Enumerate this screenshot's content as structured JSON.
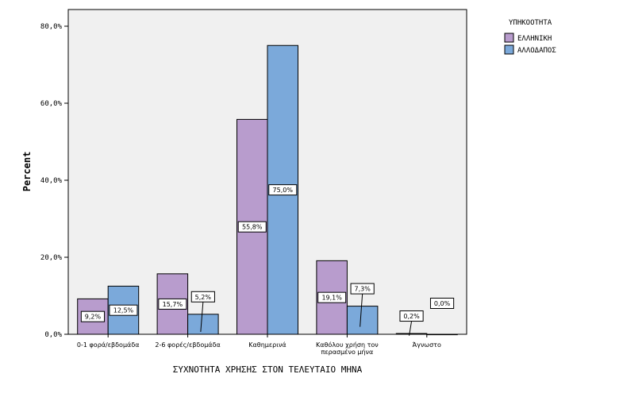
{
  "chart_data": {
    "type": "bar",
    "title": "",
    "xlabel": "ΣΥΧΝΟΤΗΤΑ ΧΡΗΣΗΣ ΣΤΟΝ ΤΕΛΕΥΤΑΙΟ ΜΗΝΑ",
    "ylabel": "Percent",
    "ylim": [
      0,
      80
    ],
    "yticks": [
      0,
      20,
      40,
      60,
      80
    ],
    "ytick_labels": [
      "0,0%",
      "20,0%",
      "40,0%",
      "60,0%",
      "80,0%"
    ],
    "grid": false,
    "legend_position": "top-right",
    "legend_title": "ΥΠΗΚΟΟΤΗΤΑ",
    "categories": [
      [
        "0-1 φορά/εβδομάδα"
      ],
      [
        "2-6 φορές/εβδομάδα"
      ],
      [
        "Καθημερινά"
      ],
      [
        "Καθόλου χρήση τον",
        "περασμένο μήνα"
      ],
      [
        "Άγνωστο"
      ]
    ],
    "series": [
      {
        "name": "ΕΛΛΗΝΙΚΗ",
        "color": "#b89ccd",
        "values": [
          9.2,
          15.7,
          55.8,
          19.1,
          0.2
        ],
        "labels": [
          "9,2%",
          "15,7%",
          "55,8%",
          "19,1%",
          "0,2%"
        ]
      },
      {
        "name": "ΑΛΛΟΔΑΠΟΣ",
        "color": "#7ba9da",
        "values": [
          12.5,
          5.2,
          75.0,
          7.3,
          0.0
        ],
        "labels": [
          "12,5%",
          "5,2%",
          "75,0%",
          "7,3%",
          "0,0%"
        ]
      }
    ]
  }
}
